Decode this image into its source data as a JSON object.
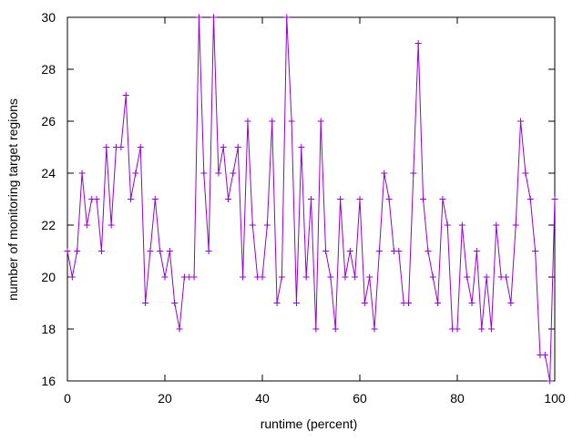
{
  "chart_data": {
    "type": "line",
    "title": "",
    "xlabel": "runtime (percent)",
    "ylabel": "number of monitoring target regions",
    "xlim": [
      0,
      100
    ],
    "ylim": [
      16,
      30
    ],
    "x_ticks": [
      0,
      20,
      40,
      60,
      80,
      100
    ],
    "y_ticks": [
      16,
      18,
      20,
      22,
      24,
      26,
      28,
      30
    ],
    "grid": false,
    "legend": "none",
    "marker": "plus",
    "series": [
      {
        "color": "#9400d3",
        "x": [
          0,
          1,
          2,
          3,
          4,
          5,
          6,
          7,
          8,
          9,
          10,
          11,
          12,
          13,
          14,
          15,
          16,
          17,
          18,
          19,
          20,
          21,
          22,
          23,
          24,
          25,
          26,
          27,
          28,
          29,
          30,
          31,
          32,
          33,
          34,
          35,
          36,
          37,
          38,
          39,
          40,
          41,
          42,
          43,
          44,
          45,
          46,
          47,
          48,
          49,
          50,
          51,
          52,
          53,
          54,
          55,
          56,
          57,
          58,
          59,
          60,
          61,
          62,
          63,
          64,
          65,
          66,
          67,
          68,
          69,
          70,
          71,
          72,
          73,
          74,
          75,
          76,
          77,
          78,
          79,
          80,
          81,
          82,
          83,
          84,
          85,
          86,
          87,
          88,
          89,
          90,
          91,
          92,
          93,
          94,
          95,
          96,
          97,
          98,
          99,
          100
        ],
        "y": [
          21,
          20,
          21,
          24,
          22,
          23,
          23,
          21,
          25,
          22,
          25,
          25,
          27,
          23,
          24,
          25,
          19,
          21,
          23,
          21,
          20,
          21,
          19,
          18,
          20,
          20,
          20,
          30,
          24,
          21,
          30,
          24,
          25,
          23,
          24,
          25,
          20,
          26,
          22,
          20,
          20,
          22,
          26,
          19,
          20,
          30,
          26,
          19,
          25,
          20,
          23,
          18,
          26,
          21,
          20,
          18,
          23,
          20,
          21,
          20,
          23,
          19,
          20,
          18,
          21,
          24,
          23,
          21,
          21,
          19,
          19,
          24,
          29,
          23,
          21,
          20,
          19,
          23,
          22,
          18,
          18,
          22,
          20,
          19,
          21,
          18,
          20,
          18,
          22,
          20,
          20,
          19,
          22,
          26,
          24,
          23,
          21,
          17,
          17,
          16,
          23
        ]
      }
    ]
  }
}
